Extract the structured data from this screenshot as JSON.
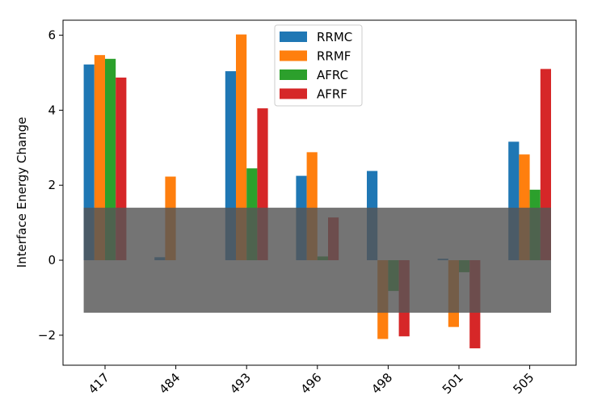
{
  "chart_data": {
    "type": "bar",
    "title": "",
    "xlabel": "",
    "ylabel": "Interface Energy Change",
    "categories": [
      "417",
      "484",
      "493",
      "496",
      "498",
      "501",
      "505"
    ],
    "yticks": [
      -2,
      0,
      2,
      4,
      6
    ],
    "ylim": [
      -2.8,
      6.4
    ],
    "grid": false,
    "legend_position": "top-center",
    "series": [
      {
        "name": "RRMC",
        "color": "#1f77b4",
        "values": [
          5.22,
          0.08,
          5.04,
          2.25,
          2.38,
          0.04,
          3.16
        ]
      },
      {
        "name": "RRMF",
        "color": "#ff7f0e",
        "values": [
          5.47,
          2.23,
          6.02,
          2.88,
          -2.1,
          -1.78,
          2.82
        ]
      },
      {
        "name": "AFRC",
        "color": "#2ca02c",
        "values": [
          5.37,
          0.0,
          2.45,
          0.1,
          -0.82,
          -0.32,
          1.88
        ]
      },
      {
        "name": "AFRF",
        "color": "#d62728",
        "values": [
          4.87,
          0.0,
          4.05,
          1.14,
          -2.03,
          -2.35,
          5.1
        ]
      }
    ],
    "band": {
      "y_range": [
        -1.4,
        1.4
      ],
      "color": "#555555",
      "opacity": 0.82
    }
  }
}
